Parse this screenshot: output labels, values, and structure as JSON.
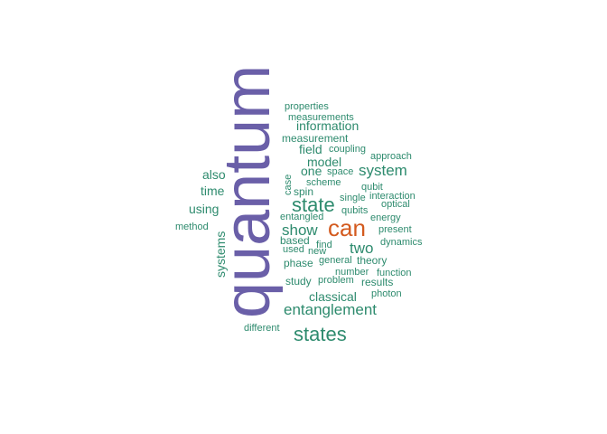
{
  "chart_data": {
    "type": "wordcloud",
    "title": "",
    "colors": {
      "top": "#6A5FA8",
      "second": "#D35A1E",
      "rest": "#2E8B6E"
    },
    "words": [
      {
        "text": "quantum",
        "rank": 1
      },
      {
        "text": "can",
        "rank": 2
      },
      {
        "text": "states",
        "rank": 3
      },
      {
        "text": "state",
        "rank": 3
      },
      {
        "text": "entanglement",
        "rank": 4
      },
      {
        "text": "system",
        "rank": 4
      },
      {
        "text": "show",
        "rank": 4
      },
      {
        "text": "two",
        "rank": 4
      },
      {
        "text": "classical",
        "rank": 5
      },
      {
        "text": "also",
        "rank": 5
      },
      {
        "text": "using",
        "rank": 5
      },
      {
        "text": "systems",
        "rank": 5
      },
      {
        "text": "information",
        "rank": 5
      },
      {
        "text": "field",
        "rank": 5
      },
      {
        "text": "model",
        "rank": 5
      },
      {
        "text": "one",
        "rank": 5
      },
      {
        "text": "time",
        "rank": 5
      },
      {
        "text": "spin",
        "rank": 6
      },
      {
        "text": "phase",
        "rank": 6
      },
      {
        "text": "theory",
        "rank": 6
      },
      {
        "text": "results",
        "rank": 6
      },
      {
        "text": "study",
        "rank": 6
      },
      {
        "text": "measurement",
        "rank": 6
      },
      {
        "text": "based",
        "rank": 6
      },
      {
        "text": "coupling",
        "rank": 7
      },
      {
        "text": "properties",
        "rank": 7
      },
      {
        "text": "measurements",
        "rank": 7
      },
      {
        "text": "approach",
        "rank": 7
      },
      {
        "text": "space",
        "rank": 7
      },
      {
        "text": "case",
        "rank": 7
      },
      {
        "text": "scheme",
        "rank": 7
      },
      {
        "text": "qubit",
        "rank": 7
      },
      {
        "text": "single",
        "rank": 7
      },
      {
        "text": "interaction",
        "rank": 7
      },
      {
        "text": "optical",
        "rank": 7
      },
      {
        "text": "qubits",
        "rank": 7
      },
      {
        "text": "entangled",
        "rank": 7
      },
      {
        "text": "energy",
        "rank": 7
      },
      {
        "text": "method",
        "rank": 7
      },
      {
        "text": "present",
        "rank": 7
      },
      {
        "text": "find",
        "rank": 7
      },
      {
        "text": "used",
        "rank": 7
      },
      {
        "text": "new",
        "rank": 7
      },
      {
        "text": "dynamics",
        "rank": 7
      },
      {
        "text": "general",
        "rank": 7
      },
      {
        "text": "number",
        "rank": 7
      },
      {
        "text": "function",
        "rank": 7
      },
      {
        "text": "problem",
        "rank": 7
      },
      {
        "text": "photon",
        "rank": 7
      },
      {
        "text": "different",
        "rank": 7
      }
    ]
  }
}
